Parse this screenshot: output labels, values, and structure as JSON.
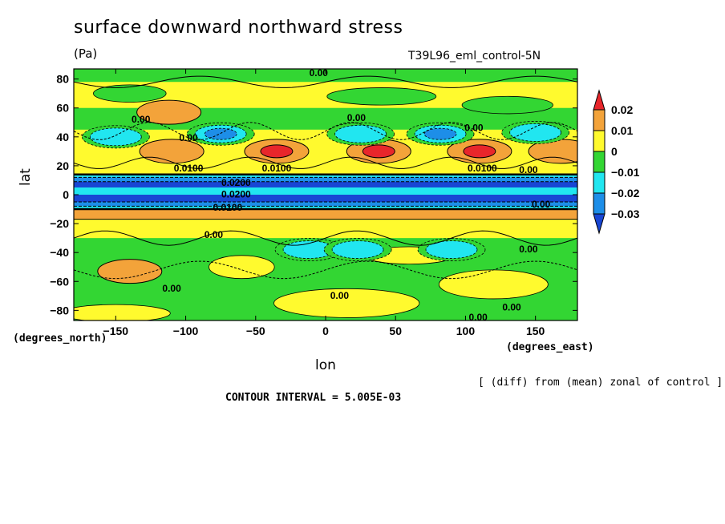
{
  "title": "surface downward northward stress",
  "units": "(Pa)",
  "run_label": "T39L96_eml_control-5N",
  "note": "[ (diff) from (mean) zonal of control ]",
  "contour_interval": "CONTOUR INTERVAL = 5.005E-03",
  "chart_data": {
    "type": "heatmap",
    "title": "surface downward northward stress",
    "xlabel": "lon",
    "xlabel_units": "(degrees_east)",
    "ylabel": "lat",
    "ylabel_units": "(degrees_north)",
    "xlim": [
      -180,
      180
    ],
    "ylim": [
      -87,
      87
    ],
    "x_ticks": [
      -150,
      -100,
      -50,
      0,
      50,
      100,
      150
    ],
    "x_tick_labels": [
      "-150",
      "-100",
      "-50",
      "0",
      "50",
      "100",
      "150"
    ],
    "y_ticks": [
      80,
      60,
      40,
      20,
      0,
      -20,
      -40,
      -60,
      -80
    ],
    "y_tick_labels": [
      "80",
      "60",
      "40",
      "20",
      "0",
      "-20",
      "-40",
      "-60",
      "-80"
    ],
    "colorbar": {
      "levels": [
        -0.03,
        -0.02,
        -0.01,
        0,
        0.01,
        0.02
      ],
      "labels": [
        "0.02",
        "0.01",
        "0",
        "-0.01",
        "-0.02",
        "-0.03"
      ],
      "colors": [
        "#e8262b",
        "#f3a33a",
        "#fffa2e",
        "#33d633",
        "#21e6f0",
        "#1d8ee8",
        "#1846d4"
      ]
    },
    "contour_labels": [
      {
        "text": "0.00",
        "lon": -5,
        "lat": 82
      },
      {
        "text": "0.00",
        "lon": -132,
        "lat": 50
      },
      {
        "text": "0.00",
        "lon": 22,
        "lat": 51
      },
      {
        "text": "0.00",
        "lon": 106,
        "lat": 44
      },
      {
        "text": "0.00",
        "lon": -98,
        "lat": 37
      },
      {
        "text": "0.0100",
        "lon": -98,
        "lat": 16
      },
      {
        "text": "0.0100",
        "lon": -35,
        "lat": 16
      },
      {
        "text": "0.0100",
        "lon": 112,
        "lat": 16
      },
      {
        "text": "0.00",
        "lon": 145,
        "lat": 15
      },
      {
        "text": "0.0200",
        "lon": -64,
        "lat": 6
      },
      {
        "text": "0.0200",
        "lon": -64,
        "lat": -2
      },
      {
        "text": "0.0100",
        "lon": -70,
        "lat": -11
      },
      {
        "text": "0.00",
        "lon": 154,
        "lat": -9
      },
      {
        "text": "0.00",
        "lon": -80,
        "lat": -30
      },
      {
        "text": "0.00",
        "lon": 145,
        "lat": -40
      },
      {
        "text": "0.00",
        "lon": -110,
        "lat": -67
      },
      {
        "text": "0.00",
        "lon": 10,
        "lat": -72
      },
      {
        "text": "0.00",
        "lon": 133,
        "lat": -80
      },
      {
        "text": "0.00",
        "lon": 109,
        "lat": -87
      }
    ],
    "features": [
      {
        "kind": "positive_max",
        "lon": -35,
        "lat": 30,
        "value": 0.02
      },
      {
        "kind": "positive_max",
        "lon": 38,
        "lat": 30,
        "value": 0.02
      },
      {
        "kind": "positive_max",
        "lon": 110,
        "lat": 30,
        "value": 0.02
      },
      {
        "kind": "positive_max",
        "lon": -110,
        "lat": 30,
        "value": 0.01
      },
      {
        "kind": "positive_max",
        "lon": 168,
        "lat": 30,
        "value": 0.01
      },
      {
        "kind": "positive_max",
        "lon": -112,
        "lat": 57,
        "value": 0.01
      },
      {
        "kind": "positive_max",
        "lon": -140,
        "lat": -53,
        "value": 0.01
      },
      {
        "kind": "negative_min",
        "lon": -150,
        "lat": 40,
        "value": -0.02
      },
      {
        "kind": "negative_min",
        "lon": -75,
        "lat": 42,
        "value": -0.03
      },
      {
        "kind": "negative_min",
        "lon": 25,
        "lat": 42,
        "value": -0.02
      },
      {
        "kind": "negative_min",
        "lon": 82,
        "lat": 42,
        "value": -0.03
      },
      {
        "kind": "negative_min",
        "lon": 150,
        "lat": 43,
        "value": -0.02
      },
      {
        "kind": "negative_band",
        "lon_range": [
          -180,
          180
        ],
        "lat_range": [
          -8,
          12
        ],
        "value": -0.04
      },
      {
        "kind": "positive_band",
        "lon_range": [
          -180,
          180
        ],
        "lat_range": [
          -17,
          -10
        ],
        "value": 0.01
      },
      {
        "kind": "negative_min",
        "lon": -12,
        "lat": -38,
        "value": -0.02
      },
      {
        "kind": "negative_min",
        "lon": 23,
        "lat": -38,
        "value": -0.02
      },
      {
        "kind": "negative_min",
        "lon": 90,
        "lat": -38,
        "value": -0.02
      }
    ]
  }
}
